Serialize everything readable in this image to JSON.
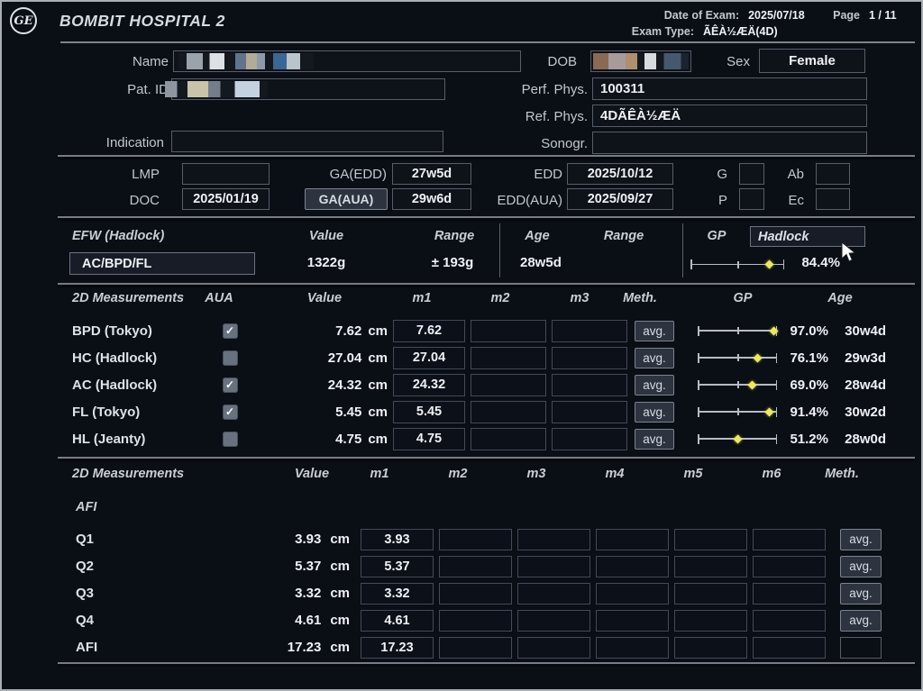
{
  "header": {
    "hospital": "BOMBIT HOSPITAL 2",
    "date_of_exam_label": "Date of Exam:",
    "date_of_exam": "2025/07/18",
    "exam_type_label": "Exam Type:",
    "exam_type": "ÃÊÀ½ÆÄ(4D)",
    "page_label": "Page",
    "page": "1 / 11"
  },
  "patient": {
    "name_label": "Name",
    "patid_label": "Pat. ID",
    "indication_label": "Indication",
    "indication_value": "",
    "dob_label": "DOB",
    "sex_label": "Sex",
    "sex_value": "Female",
    "perf_phys_label": "Perf. Phys.",
    "perf_phys_value": "100311",
    "ref_phys_label": "Ref. Phys.",
    "ref_phys_value": "4DÃÊÀ½ÆÄ",
    "sonogr_label": "Sonogr.",
    "sonogr_value": ""
  },
  "ob_dates": {
    "lmp_label": "LMP",
    "lmp_value": "",
    "doc_label": "DOC",
    "doc_value": "2025/01/19",
    "ga_edd_label": "GA(EDD)",
    "ga_edd_value": "27w5d",
    "ga_aua_label": "GA(AUA)",
    "ga_aua_value": "29w6d",
    "edd_label": "EDD",
    "edd_value": "2025/10/12",
    "edd_aua_label": "EDD(AUA)",
    "edd_aua_value": "2025/09/27",
    "g_label": "G",
    "g_value": "",
    "p_label": "P",
    "p_value": "",
    "ab_label": "Ab",
    "ab_value": "",
    "ec_label": "Ec",
    "ec_value": ""
  },
  "efw": {
    "title": "EFW (Hadlock)",
    "col_value": "Value",
    "col_range": "Range",
    "col_age": "Age",
    "col_range2": "Range",
    "col_gp": "GP",
    "gp_method": "Hadlock",
    "formula": "AC/BPD/FL",
    "value": "1322g",
    "range": "± 193g",
    "age": "28w5d",
    "gp_percent": "84.4%",
    "gp_pos": 84.4
  },
  "measurements_2d": {
    "title": "2D Measurements",
    "col_aua": "AUA",
    "col_value": "Value",
    "col_m1": "m1",
    "col_m2": "m2",
    "col_m3": "m3",
    "col_meth": "Meth.",
    "col_gp": "GP",
    "col_age": "Age",
    "meth_label": "avg.",
    "rows": [
      {
        "label": "BPD (Tokyo)",
        "checked": true,
        "value": "7.62",
        "unit": "cm",
        "m1": "7.62",
        "m2": "",
        "m3": "",
        "meth": "avg.",
        "gp_percent": "97.0%",
        "gp_pos": 97.0,
        "age": "30w4d"
      },
      {
        "label": "HC (Hadlock)",
        "checked": false,
        "value": "27.04",
        "unit": "cm",
        "m1": "27.04",
        "m2": "",
        "m3": "",
        "meth": "avg.",
        "gp_percent": "76.1%",
        "gp_pos": 76.1,
        "age": "29w3d"
      },
      {
        "label": "AC (Hadlock)",
        "checked": true,
        "value": "24.32",
        "unit": "cm",
        "m1": "24.32",
        "m2": "",
        "m3": "",
        "meth": "avg.",
        "gp_percent": "69.0%",
        "gp_pos": 69.0,
        "age": "28w4d"
      },
      {
        "label": "FL (Tokyo)",
        "checked": true,
        "value": "5.45",
        "unit": "cm",
        "m1": "5.45",
        "m2": "",
        "m3": "",
        "meth": "avg.",
        "gp_percent": "91.4%",
        "gp_pos": 91.4,
        "age": "30w2d"
      },
      {
        "label": "HL (Jeanty)",
        "checked": false,
        "value": "4.75",
        "unit": "cm",
        "m1": "4.75",
        "m2": "",
        "m3": "",
        "meth": "avg.",
        "gp_percent": "51.2%",
        "gp_pos": 51.2,
        "age": "28w0d"
      }
    ]
  },
  "afi_section": {
    "title": "2D Measurements",
    "col_value": "Value",
    "col_m1": "m1",
    "col_m2": "m2",
    "col_m3": "m3",
    "col_m4": "m4",
    "col_m5": "m5",
    "col_m6": "m6",
    "col_meth": "Meth.",
    "group_label": "AFI",
    "rows": [
      {
        "label": "Q1",
        "value": "3.93",
        "unit": "cm",
        "m1": "3.93",
        "meth": "avg."
      },
      {
        "label": "Q2",
        "value": "5.37",
        "unit": "cm",
        "m1": "5.37",
        "meth": "avg."
      },
      {
        "label": "Q3",
        "value": "3.32",
        "unit": "cm",
        "m1": "3.32",
        "meth": "avg."
      },
      {
        "label": "Q4",
        "value": "4.61",
        "unit": "cm",
        "m1": "4.61",
        "meth": "avg."
      },
      {
        "label": "AFI",
        "value": "17.23",
        "unit": "cm",
        "m1": "17.23",
        "meth": ""
      }
    ]
  },
  "colors": {
    "background": "#0a0e15",
    "accent_yellow": "#ece95e",
    "checkbox_grey": "#68717f",
    "border_grey": "#575e6b"
  }
}
